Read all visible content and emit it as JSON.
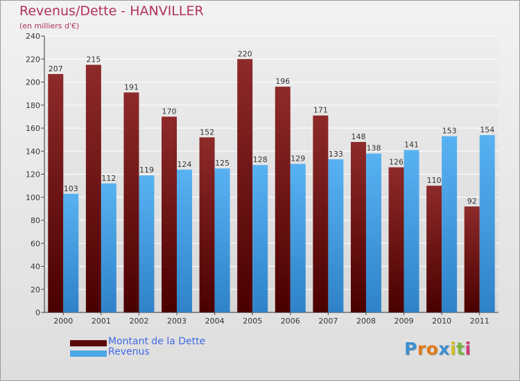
{
  "title": "Revenus/Dette - HANVILLER",
  "subtitle": "(en milliers d'€)",
  "chart_data": {
    "type": "bar",
    "categories": [
      "2000",
      "2001",
      "2002",
      "2003",
      "2004",
      "2005",
      "2006",
      "2007",
      "2008",
      "2009",
      "2010",
      "2011"
    ],
    "series": [
      {
        "name": "Montant de la Dette",
        "values": [
          207,
          215,
          191,
          170,
          152,
          220,
          196,
          171,
          148,
          126,
          110,
          92
        ],
        "color": "#7a1a1a"
      },
      {
        "name": "Revenus",
        "values": [
          103,
          112,
          119,
          124,
          125,
          128,
          129,
          133,
          138,
          141,
          153,
          154
        ],
        "color": "#4da6e8"
      }
    ],
    "ylim": [
      0,
      240
    ],
    "yticks": [
      0,
      20,
      40,
      60,
      80,
      100,
      120,
      140,
      160,
      180,
      200,
      220,
      240
    ],
    "grid": true,
    "legend_position": "bottom-left"
  },
  "legend": [
    {
      "label": "Montant de la Dette",
      "color": "#5a0a0a"
    },
    {
      "label": "Revenus",
      "color": "#4da6e8"
    }
  ],
  "logo": {
    "letters": [
      "P",
      "r",
      "o",
      "x",
      "i",
      "t",
      "i"
    ],
    "colors": [
      "#3b8fd0",
      "#e07b1a",
      "#e07b1a",
      "#3b8fd0",
      "#d0c020",
      "#7cb342",
      "#d03a7a"
    ]
  }
}
